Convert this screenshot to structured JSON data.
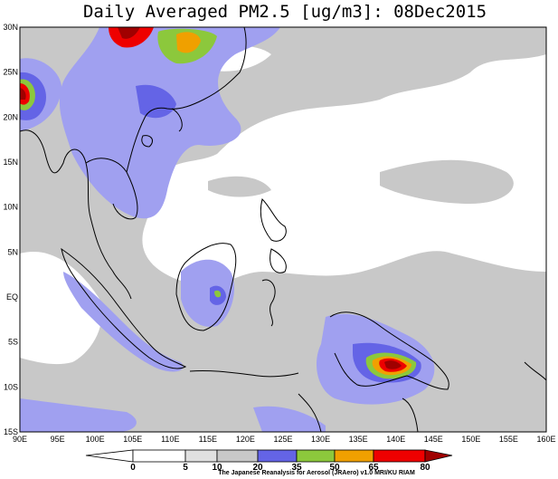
{
  "map": {
    "title": "Daily Averaged PM2.5 [ug/m3]: 08Dec2015",
    "lon_labels": [
      "90E",
      "95E",
      "100E",
      "105E",
      "110E",
      "115E",
      "120E",
      "125E",
      "130E",
      "135E",
      "140E",
      "145E",
      "150E",
      "155E",
      "160E"
    ],
    "lat_labels": [
      "30N",
      "25N",
      "20N",
      "15N",
      "10N",
      "5N",
      "EQ",
      "5S",
      "10S",
      "15S"
    ],
    "colorbar_levels": [
      0,
      5,
      10,
      20,
      35,
      50,
      65,
      80
    ],
    "credit": "The Japanese Reanalysis for Aerosol (JRAero) v1.0 MRI/KU RIAM"
  }
}
